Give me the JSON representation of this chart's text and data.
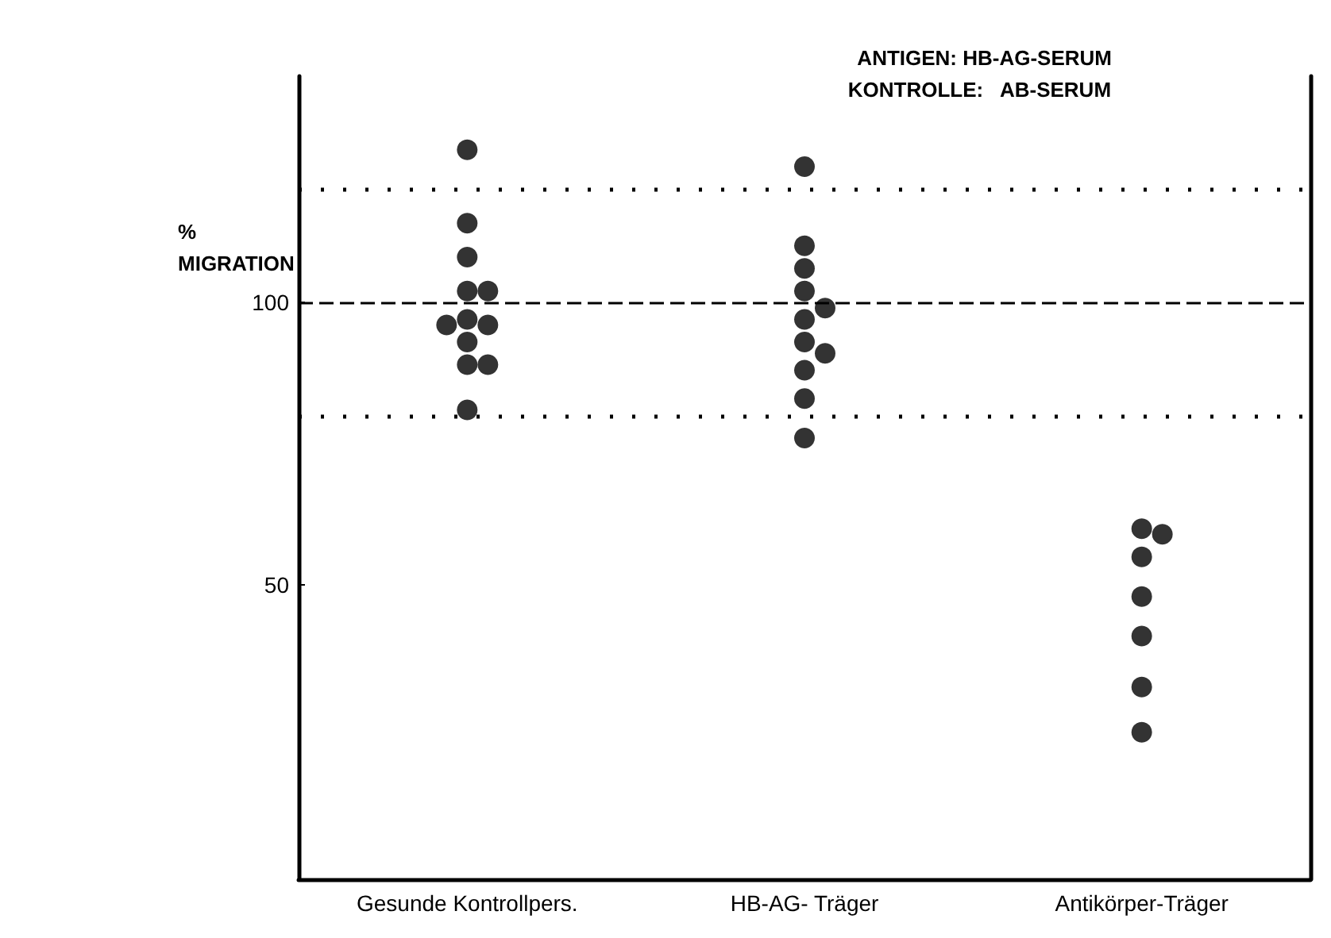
{
  "chart_data": {
    "type": "scatter",
    "ylabel": "%\nMIGRATION",
    "categories": [
      "Gesunde Kontrollpers.",
      "HB-AG- Träger",
      "Antikörper-Träger"
    ],
    "series": [
      {
        "color": "#000000",
        "x": [
          "Gesunde Kontrollpers.",
          "Gesunde Kontrollpers.",
          "Gesunde Kontrollpers.",
          "Gesunde Kontrollpers.",
          "Gesunde Kontrollpers.",
          "Gesunde Kontrollpers.",
          "Gesunde Kontrollpers.",
          "Gesunde Kontrollpers.",
          "Gesunde Kontrollpers.",
          "Gesunde Kontrollpers.",
          "Gesunde Kontrollpers.",
          "Gesunde Kontrollpers.",
          "HB-AG- Träger",
          "HB-AG- Träger",
          "HB-AG- Träger",
          "HB-AG- Träger",
          "HB-AG- Träger",
          "HB-AG- Träger",
          "HB-AG- Träger",
          "HB-AG- Träger",
          "HB-AG- Träger",
          "HB-AG- Träger",
          "HB-AG- Träger",
          "Antikörper-Träger",
          "Antikörper-Träger",
          "Antikörper-Träger",
          "Antikörper-Träger",
          "Antikörper-Träger",
          "Antikörper-Träger",
          "Antikörper-Träger"
        ],
        "values": [
          127,
          114,
          108,
          102,
          102,
          97,
          96,
          96,
          93,
          89,
          89,
          81,
          124,
          110,
          106,
          102,
          99,
          97,
          93,
          91,
          88,
          83,
          76,
          60,
          59,
          55,
          48,
          41,
          32,
          24
        ]
      }
    ],
    "ylim": [
      -2,
      140
    ],
    "yticks": [
      50,
      100
    ],
    "grid": false,
    "marker": "circle",
    "ref_lines": [
      {
        "axis": "y",
        "value": 100,
        "line_style": "dashed",
        "color": "#000000"
      },
      {
        "axis": "y",
        "value": 120,
        "line_style": "dotted",
        "color": "#000000"
      },
      {
        "axis": "y",
        "value": 80,
        "line_style": "dotted",
        "color": "#000000"
      }
    ],
    "annotations": [
      "ANTIGEN: HB-AG-SERUM",
      "KONTROLLE:   AB-SERUM"
    ]
  }
}
